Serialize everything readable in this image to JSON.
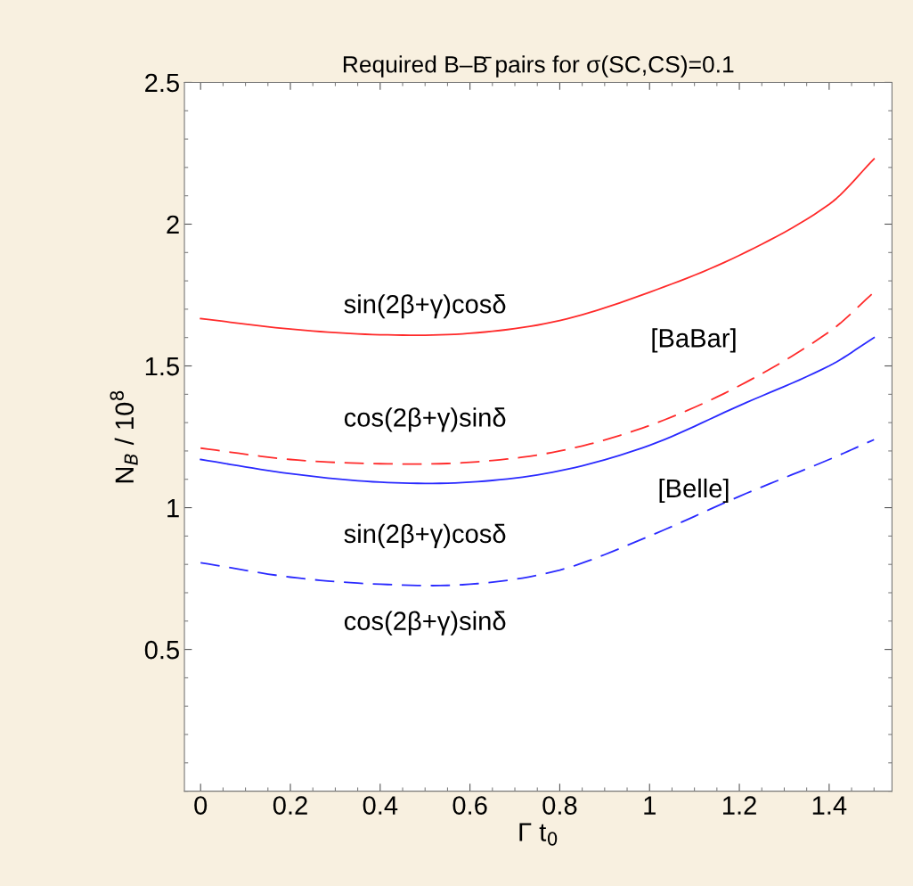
{
  "chart_data": {
    "type": "line",
    "title": "Required B–B̄ pairs for σ(SC,CS)=0.1",
    "xlabel": "Γ t$_{0}$",
    "ylabel": "N$_{B}$ / 10$^{8}$",
    "x": [
      0,
      0.2,
      0.4,
      0.6,
      0.8,
      1.0,
      1.2,
      1.4,
      1.5
    ],
    "series": [
      {
        "color": "#ff2a2a",
        "line_style": "solid",
        "values": [
          1.667,
          1.63,
          1.61,
          1.615,
          1.66,
          1.76,
          1.89,
          2.07,
          2.23
        ]
      },
      {
        "color": "#ff2a2a",
        "line_style": "dashed",
        "values": [
          1.21,
          1.17,
          1.155,
          1.16,
          1.2,
          1.29,
          1.43,
          1.62,
          1.76
        ]
      },
      {
        "color": "#2a2aff",
        "line_style": "solid",
        "values": [
          1.17,
          1.12,
          1.09,
          1.09,
          1.13,
          1.22,
          1.36,
          1.5,
          1.6
        ]
      },
      {
        "color": "#2a2aff",
        "line_style": "dashed",
        "values": [
          0.806,
          0.755,
          0.73,
          0.73,
          0.78,
          0.9,
          1.04,
          1.17,
          1.24
        ]
      }
    ],
    "annotations": [
      "sin(2β+γ)cosδ",
      "cos(2β+γ)sinδ",
      "[BaBar]",
      "[Belle]",
      "sin(2β+γ)cosδ",
      "cos(2β+γ)sinδ"
    ],
    "xlim": [
      -0.036,
      1.54
    ],
    "ylim": [
      0,
      2.5
    ],
    "xticks": [
      0,
      0.2,
      0.4,
      0.6,
      0.8,
      1,
      1.2,
      1.4
    ],
    "yticks": [
      0.5,
      1,
      1.5,
      2,
      2.5
    ],
    "grid": false,
    "legend": false,
    "marker": "none"
  }
}
